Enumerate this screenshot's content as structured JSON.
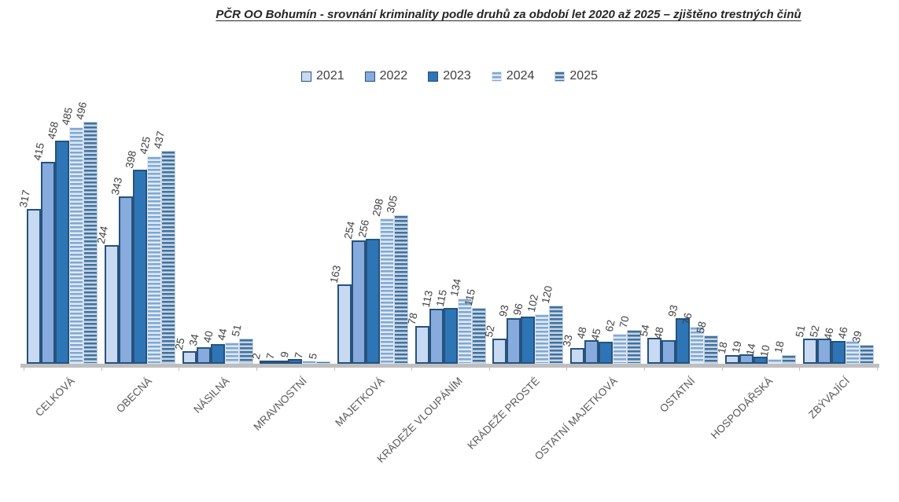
{
  "title": "PČR OO Bohumín - srovnání kriminality podle druhů za období let 2020 až 2025 – zjištěno trestných činů",
  "colors": {
    "axis_line": "#BFBFBF",
    "bar_border": "#26527D",
    "value_label": "#3F3F3F",
    "category_label": "#595959",
    "legend_text": "#404040",
    "background": "#FFFFFF"
  },
  "chart_data": {
    "type": "bar",
    "title": "PČR OO Bohumín - srovnání kriminality podle druhů za období let 2020 až 2025 – zjištěno trestných činů",
    "xlabel": "",
    "ylabel": "",
    "ylim": [
      0,
      500
    ],
    "grid": false,
    "legend_position": "top",
    "value_labels_rotated": true,
    "category_labels_rotated_deg": -45,
    "categories": [
      "CELKOVÁ",
      "OBECNÁ",
      "NÁSILNÁ",
      "MRAVNOSTNÍ",
      "MAJETKOVÁ",
      "KRÁDEŽE VLOUPÁNÍM",
      "KRÁDEŽE PROSTÉ",
      "OSTATNÍ MAJETKOVÁ",
      "OSTATNÍ",
      "HOSPODÁŘSKÁ",
      "ZBÝVAJÍCÍ"
    ],
    "series": [
      {
        "name": "2021",
        "style": "solid",
        "fill": "#C8DAF1",
        "values": [
          317,
          244,
          25,
          2,
          163,
          78,
          52,
          33,
          54,
          18,
          51
        ]
      },
      {
        "name": "2022",
        "style": "solid",
        "fill": "#86ABDC",
        "values": [
          415,
          343,
          34,
          7,
          254,
          113,
          93,
          48,
          48,
          19,
          52
        ]
      },
      {
        "name": "2023",
        "style": "solid",
        "fill": "#2E75B6",
        "values": [
          458,
          398,
          40,
          9,
          256,
          115,
          96,
          45,
          93,
          14,
          46
        ]
      },
      {
        "name": "2024",
        "style": "striped",
        "stripe_light": "#DFE9F5",
        "stripe_dark": "#7FA7D3",
        "values": [
          485,
          425,
          44,
          7,
          298,
          134,
          102,
          62,
          76,
          10,
          46
        ]
      },
      {
        "name": "2025",
        "style": "striped",
        "stripe_light": "#C4D4E6",
        "stripe_dark": "#41719C",
        "values": [
          496,
          437,
          51,
          5,
          305,
          115,
          120,
          70,
          58,
          18,
          39
        ]
      }
    ]
  }
}
